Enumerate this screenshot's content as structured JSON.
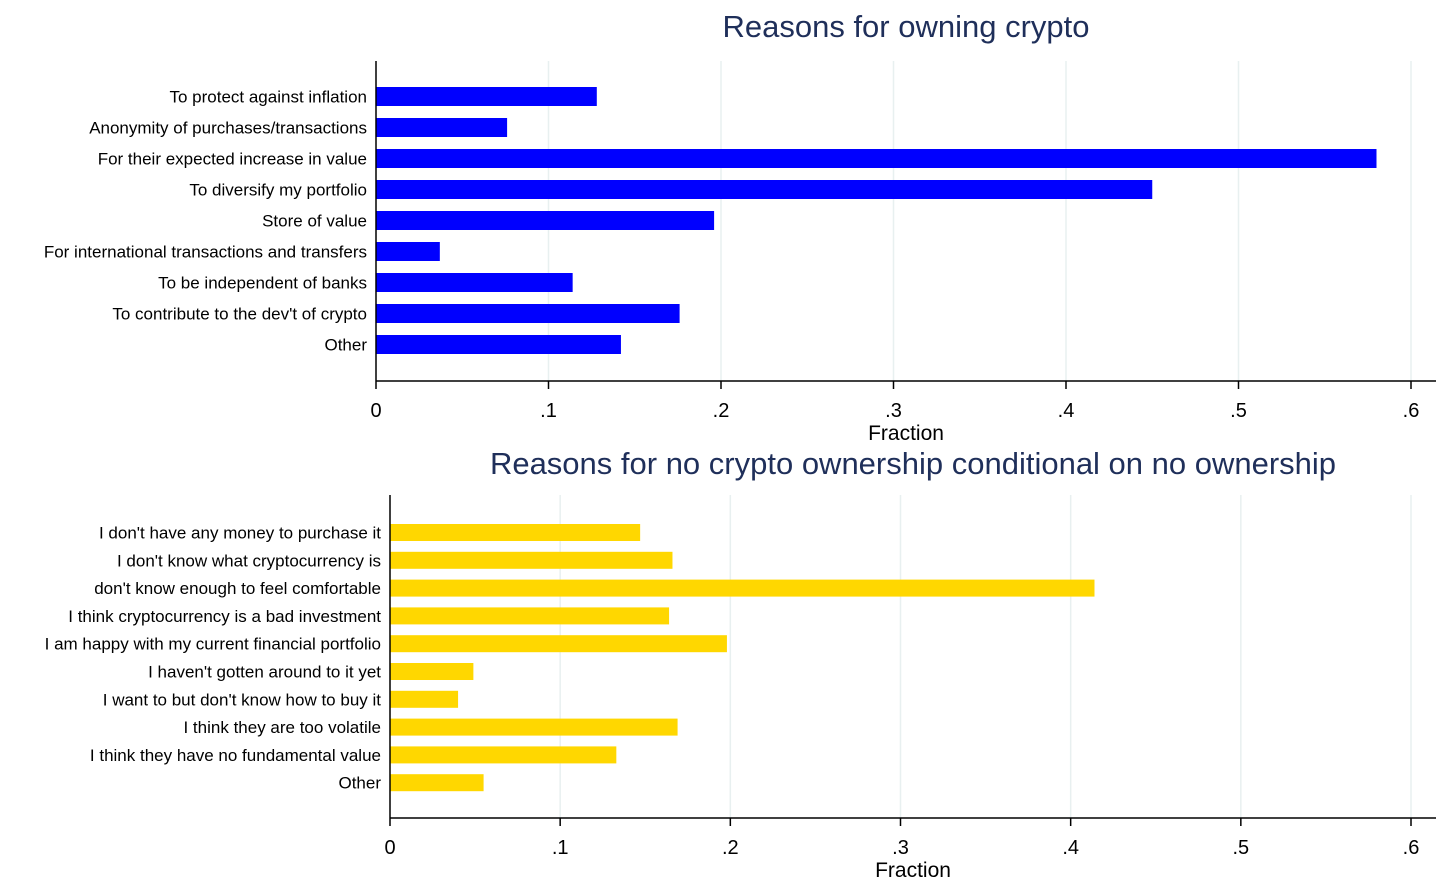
{
  "chart_data": [
    {
      "type": "bar",
      "orientation": "horizontal",
      "title": "Reasons for owning crypto",
      "xlabel": "Fraction",
      "ylabel": "",
      "xlim": [
        0,
        0.6
      ],
      "xticks": [
        0,
        0.1,
        0.2,
        0.3,
        0.4,
        0.5,
        0.6
      ],
      "xtick_labels": [
        "0",
        ".1",
        ".2",
        ".3",
        ".4",
        ".5",
        ".6"
      ],
      "grid": true,
      "bar_color": "#0000ff",
      "categories": [
        "To protect against inflation",
        "Anonymity of purchases/transactions",
        "For their expected increase in value",
        "To diversify my portfolio",
        "Store of value",
        "For international transactions and transfers",
        "To be independent of banks",
        "To contribute to the dev't of crypto",
        "Other"
      ],
      "values": [
        0.128,
        0.076,
        0.58,
        0.45,
        0.196,
        0.037,
        0.114,
        0.176,
        0.142
      ]
    },
    {
      "type": "bar",
      "orientation": "horizontal",
      "title": "Reasons for no crypto ownership conditional on no ownership",
      "xlabel": "Fraction",
      "ylabel": "",
      "xlim": [
        0,
        0.6
      ],
      "xticks": [
        0,
        0.1,
        0.2,
        0.3,
        0.4,
        0.5,
        0.6
      ],
      "xtick_labels": [
        "0",
        ".1",
        ".2",
        ".3",
        ".4",
        ".5",
        ".6"
      ],
      "grid": true,
      "bar_color": "#ffd700",
      "categories": [
        "I don't have any money to purchase it",
        "I don't know what cryptocurrency is",
        "don't know enough to feel comfortable",
        "I think cryptocurrency is a bad investment",
        "I am happy with my current financial portfolio",
        "I haven't gotten around to it yet",
        "I want to but don't know how to buy it",
        "I think they are too volatile",
        "I think they have no fundamental value",
        "Other"
      ],
      "values": [
        0.147,
        0.166,
        0.414,
        0.164,
        0.198,
        0.049,
        0.04,
        0.169,
        0.133,
        0.055
      ]
    }
  ]
}
